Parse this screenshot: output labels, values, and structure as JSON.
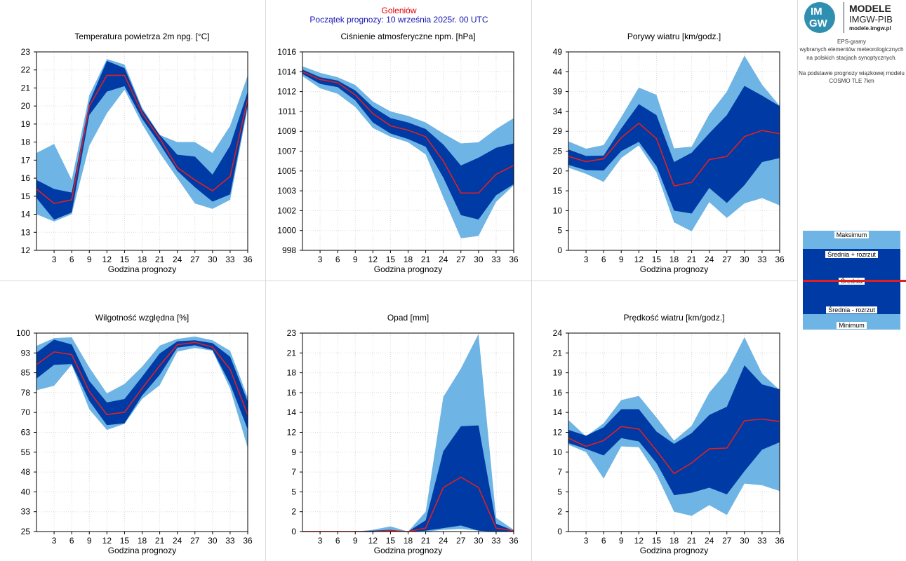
{
  "header": {
    "station": "Goleniów",
    "start": "Początek prognozy: 10 września 2025r. 00 UTC"
  },
  "logo": {
    "mark_top": "IM",
    "mark_bottom": "GW",
    "title": "MODELE",
    "subtitle": "IMGW-PIB",
    "url": "modele.imgw.pl"
  },
  "info": {
    "line1": "EPS-gramy",
    "line2": "wybranych elementów meteorologicznych",
    "line3": "na polskich stacjach  synoptycznych.",
    "line4": "Na podstawie prognozy wiązkowej modelu",
    "line5": "COSMO TLE 7km"
  },
  "legend": {
    "max": "Maksimum",
    "mean_plus": "Średnia + rozrzut",
    "mean": "Średnia",
    "mean_minus": "Średnia - rozrzut",
    "min": "Minimum"
  },
  "colors": {
    "outer_band": "#6eb4e4",
    "inner_band": "#003aa5",
    "mean_line": "#e02020",
    "station_text": "#e00000",
    "start_text": "#1414b4"
  },
  "chart_data": [
    {
      "type": "area",
      "title": "Temperatura powietrza 2m npg. [°C]",
      "xlabel": "Godzina prognozy",
      "x": [
        0,
        3,
        6,
        9,
        12,
        15,
        18,
        21,
        24,
        27,
        30,
        33,
        36
      ],
      "xticks": [
        "3",
        "6",
        "9",
        "12",
        "15",
        "18",
        "21",
        "24",
        "27",
        "30",
        "33",
        "36"
      ],
      "yticks": [
        "12",
        "13",
        "14",
        "15",
        "16",
        "17",
        "18",
        "19",
        "20",
        "21",
        "22",
        "23"
      ],
      "ylim": [
        12,
        23
      ],
      "min": [
        14.0,
        13.6,
        14.0,
        17.8,
        19.6,
        20.9,
        19.0,
        17.4,
        16.0,
        14.6,
        14.3,
        14.8,
        19.9
      ],
      "mean_minus": [
        14.9,
        13.7,
        14.1,
        19.5,
        20.8,
        21.1,
        19.3,
        17.9,
        16.4,
        15.5,
        14.7,
        15.1,
        20.1
      ],
      "mean": [
        15.4,
        14.6,
        14.8,
        20.0,
        21.7,
        21.7,
        19.6,
        18.2,
        16.6,
        15.9,
        15.3,
        16.1,
        20.4
      ],
      "mean_plus": [
        15.9,
        15.4,
        15.2,
        20.2,
        22.5,
        22.1,
        19.8,
        18.4,
        17.3,
        17.2,
        16.2,
        17.8,
        20.8
      ],
      "max": [
        17.4,
        17.9,
        15.9,
        20.6,
        22.6,
        22.3,
        19.9,
        18.4,
        18.0,
        18.0,
        17.4,
        18.9,
        21.7
      ]
    },
    {
      "type": "area",
      "title": "Ciśnienie atmosferyczne npm. [hPa]",
      "xlabel": "Godzina prognozy",
      "x": [
        0,
        3,
        6,
        9,
        12,
        15,
        18,
        21,
        24,
        27,
        30,
        33,
        36
      ],
      "xticks": [
        "3",
        "6",
        "9",
        "12",
        "15",
        "18",
        "21",
        "24",
        "27",
        "30",
        "33",
        "36"
      ],
      "yticks": [
        "998",
        "1000",
        "1002",
        "1003",
        "1005",
        "1007",
        "1009",
        "1011",
        "1012",
        "1014",
        "1016"
      ],
      "ylim": [
        998,
        1016
      ],
      "min": [
        1013.8,
        1012.7,
        1012.2,
        1011.0,
        1009.1,
        1008.3,
        1007.8,
        1006.7,
        1002.8,
        999.1,
        999.3,
        1002.4,
        1003.9
      ],
      "mean_minus": [
        1014.0,
        1013.1,
        1012.8,
        1011.6,
        1009.6,
        1008.6,
        1008.1,
        1007.4,
        1004.6,
        1001.2,
        1000.8,
        1003.0,
        1004.0
      ],
      "mean": [
        1014.2,
        1013.5,
        1013.2,
        1012.1,
        1010.4,
        1009.3,
        1008.9,
        1008.3,
        1006.1,
        1003.2,
        1003.2,
        1004.9,
        1005.7
      ],
      "mean_plus": [
        1014.4,
        1013.7,
        1013.4,
        1012.5,
        1011.0,
        1010.0,
        1009.6,
        1009.0,
        1007.6,
        1005.7,
        1006.4,
        1007.3,
        1007.7
      ],
      "max": [
        1014.7,
        1014.1,
        1013.7,
        1013.0,
        1011.5,
        1010.6,
        1010.2,
        1009.6,
        1008.6,
        1007.7,
        1007.8,
        1009.0,
        1010.0
      ]
    },
    {
      "type": "area",
      "title": "Porywy wiatru [km/godz.]",
      "xlabel": "Godzina prognozy",
      "x": [
        0,
        3,
        6,
        9,
        12,
        15,
        18,
        21,
        24,
        27,
        30,
        33,
        36
      ],
      "xticks": [
        "3",
        "6",
        "9",
        "12",
        "15",
        "18",
        "21",
        "24",
        "27",
        "30",
        "33",
        "36"
      ],
      "yticks": [
        "0",
        "5",
        "10",
        "15",
        "20",
        "25",
        "29",
        "34",
        "39",
        "44",
        "49"
      ],
      "ylim": [
        0,
        49
      ],
      "min": [
        20.4,
        18.9,
        16.9,
        22.8,
        25.9,
        19.3,
        6.9,
        4.7,
        11.9,
        8.0,
        11.6,
        12.9,
        11.1
      ],
      "mean_minus": [
        21.1,
        19.8,
        19.7,
        24.5,
        26.8,
        20.8,
        9.8,
        9.1,
        15.4,
        11.7,
        16.1,
        21.8,
        22.8
      ],
      "mean": [
        23.2,
        21.9,
        22.6,
        27.8,
        31.4,
        27.6,
        15.9,
        16.8,
        22.4,
        23.2,
        28.1,
        29.6,
        28.8
      ],
      "mean_plus": [
        24.9,
        23.3,
        23.4,
        30.1,
        36.1,
        33.4,
        21.8,
        24.1,
        28.9,
        33.4,
        40.6,
        38.2,
        35.6
      ],
      "max": [
        26.9,
        25.1,
        26.0,
        32.9,
        40.2,
        38.4,
        25.2,
        25.6,
        33.6,
        39.2,
        48.1,
        40.9,
        35.7
      ]
    },
    {
      "type": "area",
      "title": "Wilgotność względna [%]",
      "xlabel": "Godzina prognozy",
      "x": [
        0,
        3,
        6,
        9,
        12,
        15,
        18,
        21,
        24,
        27,
        30,
        33,
        36
      ],
      "xticks": [
        "3",
        "6",
        "9",
        "12",
        "15",
        "18",
        "21",
        "24",
        "27",
        "30",
        "33",
        "36"
      ],
      "yticks": [
        "25",
        "33",
        "40",
        "48",
        "55",
        "63",
        "70",
        "78",
        "85",
        "93",
        "100"
      ],
      "ylim": [
        25,
        100
      ],
      "min": [
        78.4,
        80.1,
        88.0,
        71.2,
        63.4,
        65.7,
        75.1,
        80.3,
        93.0,
        94.4,
        93.3,
        79.0,
        56.6
      ],
      "mean_minus": [
        82.8,
        88.0,
        88.3,
        74.4,
        65.2,
        65.9,
        76.4,
        84.2,
        94.5,
        95.4,
        93.6,
        80.8,
        63.6
      ],
      "mean": [
        88.1,
        92.9,
        91.9,
        77.9,
        69.2,
        70.1,
        79.1,
        87.7,
        95.6,
        96.5,
        94.7,
        86.3,
        69.1
      ],
      "mean_plus": [
        92.6,
        97.5,
        95.7,
        81.9,
        73.8,
        75.1,
        83.5,
        92.3,
        96.9,
        97.3,
        96.2,
        91.1,
        74.1
      ],
      "max": [
        95.2,
        98.1,
        98.4,
        87.0,
        77.2,
        80.8,
        87.3,
        95.3,
        97.8,
        98.7,
        97.3,
        93.3,
        75.7
      ]
    },
    {
      "type": "area",
      "title": "Opad [mm]",
      "xlabel": "Godzina prognozy",
      "x": [
        0,
        3,
        6,
        9,
        12,
        15,
        18,
        21,
        24,
        27,
        30,
        33,
        36
      ],
      "xticks": [
        "3",
        "6",
        "9",
        "12",
        "15",
        "18",
        "21",
        "24",
        "27",
        "30",
        "33",
        "36"
      ],
      "yticks": [
        "0",
        "2",
        "5",
        "7",
        "9",
        "12",
        "14",
        "16",
        "18",
        "21",
        "23"
      ],
      "ylim": [
        0,
        23
      ],
      "min": [
        0,
        0,
        0,
        0,
        0,
        0,
        0,
        0,
        0.2,
        0.3,
        0.1,
        0,
        0
      ],
      "mean_minus": [
        0,
        0,
        0,
        0,
        0,
        0,
        0,
        0.1,
        0.4,
        0.7,
        0.1,
        0,
        0
      ],
      "mean": [
        0,
        0,
        0,
        0,
        0,
        0.1,
        0,
        0.4,
        5.1,
        6.3,
        5.1,
        0.4,
        0.1
      ],
      "mean_plus": [
        0,
        0,
        0,
        0,
        0.1,
        0.2,
        0,
        1.3,
        9.3,
        12.2,
        12.3,
        0.9,
        0.1
      ],
      "max": [
        0,
        0,
        0,
        0,
        0.2,
        0.6,
        0,
        2.3,
        15.6,
        18.9,
        22.9,
        1.6,
        0.2
      ]
    },
    {
      "type": "area",
      "title": "Prędkość wiatru [km/godz.]",
      "xlabel": "Godzina prognozy",
      "x": [
        0,
        3,
        6,
        9,
        12,
        15,
        18,
        21,
        24,
        27,
        30,
        33,
        36
      ],
      "xticks": [
        "3",
        "6",
        "9",
        "12",
        "15",
        "18",
        "21",
        "24",
        "27",
        "30",
        "33",
        "36"
      ],
      "yticks": [
        "0",
        "2",
        "5",
        "7",
        "10",
        "12",
        "14",
        "16",
        "19",
        "21",
        "24"
      ],
      "ylim": [
        0,
        24
      ],
      "min": [
        10.5,
        9.6,
        6.4,
        10.3,
        10.2,
        6.9,
        2.4,
        1.9,
        3.2,
        2.0,
        5.8,
        5.6,
        4.9
      ],
      "mean_minus": [
        10.7,
        10.0,
        9.2,
        11.3,
        10.9,
        8.3,
        4.4,
        4.7,
        5.3,
        4.5,
        7.3,
        9.9,
        10.8
      ],
      "mean": [
        11.3,
        10.3,
        11.0,
        12.7,
        12.4,
        9.8,
        7.0,
        8.3,
        10.0,
        10.1,
        13.4,
        13.6,
        13.3
      ],
      "mean_plus": [
        12.3,
        11.6,
        12.6,
        14.8,
        14.8,
        12.1,
        10.6,
        11.9,
        14.1,
        15.1,
        20.1,
        17.8,
        17.2
      ],
      "max": [
        13.5,
        11.5,
        13.1,
        15.9,
        16.4,
        13.8,
        11.0,
        12.8,
        16.8,
        19.3,
        23.5,
        19.1,
        17.1
      ]
    }
  ]
}
